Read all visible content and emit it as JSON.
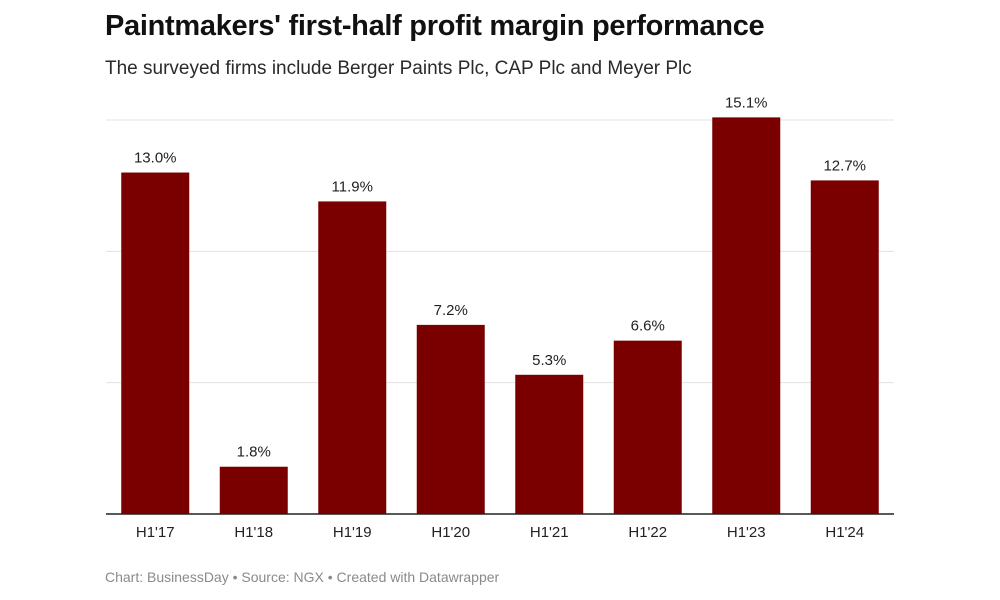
{
  "header": {
    "title": "Paintmakers' first-half profit margin performance",
    "subtitle": "The surveyed firms include Berger Paints Plc, CAP Plc and Meyer Plc"
  },
  "footer": {
    "credit": "Chart: BusinessDay • Source: NGX • Created with Datawrapper"
  },
  "colors": {
    "bar": "#7a0000",
    "grid": "#e3e3e3",
    "axis": "#222222"
  },
  "chart_data": {
    "type": "bar",
    "title": "Paintmakers' first-half profit margin performance",
    "subtitle": "The surveyed firms include Berger Paints Plc, CAP Plc and Meyer Plc",
    "categories": [
      "H1'17",
      "H1'18",
      "H1'19",
      "H1'20",
      "H1'21",
      "H1'22",
      "H1'23",
      "H1'24"
    ],
    "values": [
      13.0,
      1.8,
      11.9,
      7.2,
      5.3,
      6.6,
      15.1,
      12.7
    ],
    "value_labels": [
      "13.0%",
      "1.8%",
      "11.9%",
      "7.2%",
      "5.3%",
      "6.6%",
      "15.1%",
      "12.7%"
    ],
    "unit": "%",
    "xlabel": "",
    "ylabel": "",
    "ylim": [
      0,
      15
    ],
    "gridlines": [
      5,
      10,
      15
    ],
    "grid": true,
    "legend": "none"
  }
}
